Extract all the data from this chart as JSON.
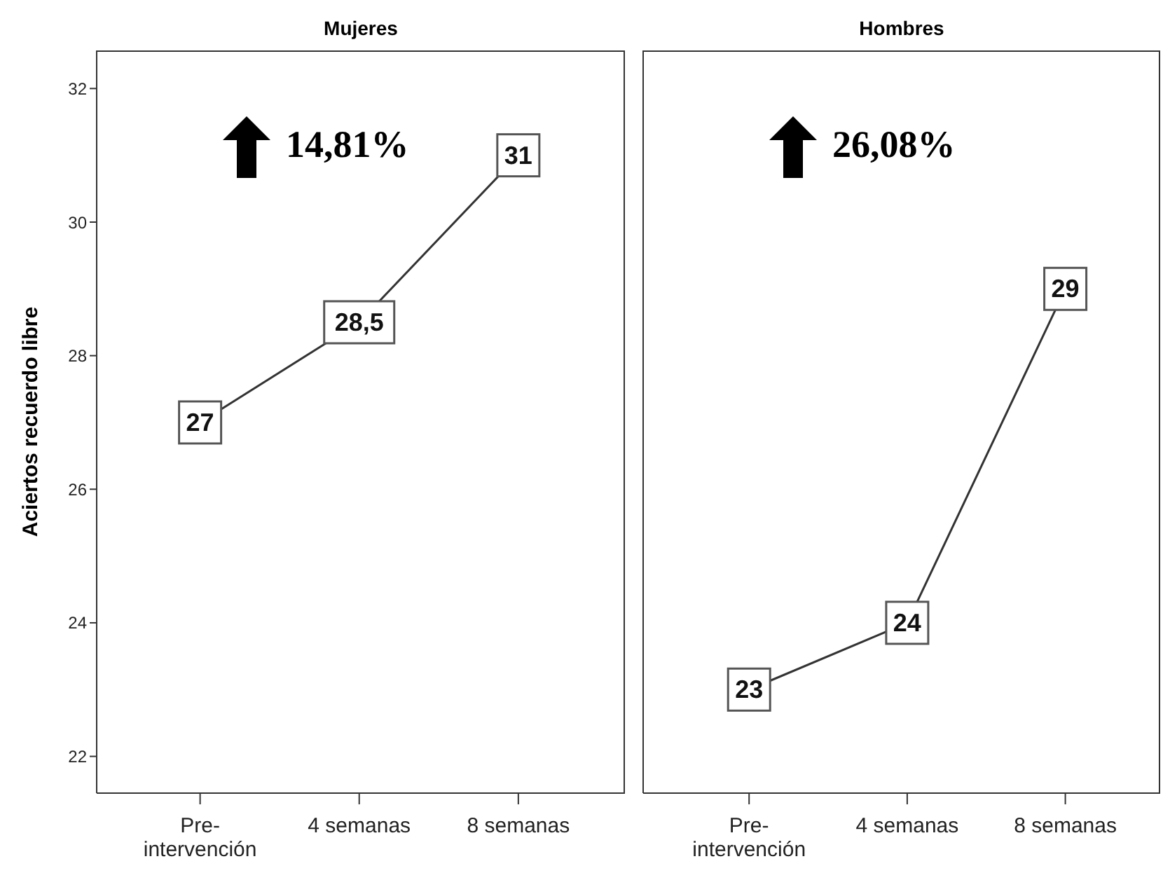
{
  "chart_data": [
    {
      "type": "line",
      "title": "Mujeres",
      "ylabel": "Aciertos recuerdo libre",
      "categories": [
        "Pre-\nintervención",
        "4 semanas",
        "8 semanas"
      ],
      "series": [
        {
          "color": "#333333",
          "values": [
            27,
            28.5,
            31
          ],
          "value_labels": [
            "27",
            "28,5",
            "31"
          ]
        }
      ],
      "ylim": [
        21.45,
        32.57
      ],
      "yticks": [
        22,
        24,
        26,
        28,
        30,
        32
      ],
      "grid": false,
      "legend": false,
      "marker": "square",
      "annotations": [
        "14,81%"
      ]
    },
    {
      "type": "line",
      "title": "Hombres",
      "categories": [
        "Pre-\nintervención",
        "4 semanas",
        "8 semanas"
      ],
      "series": [
        {
          "color": "#333333",
          "values": [
            23,
            24,
            29
          ],
          "value_labels": [
            "23",
            "24",
            "29"
          ]
        }
      ],
      "ylim": [
        21.45,
        32.57
      ],
      "yticks": [
        22,
        24,
        26,
        28,
        30,
        32
      ],
      "grid": false,
      "legend": false,
      "tick_labels": "x",
      "marker": "square",
      "annotations": [
        "26,08%"
      ]
    }
  ]
}
